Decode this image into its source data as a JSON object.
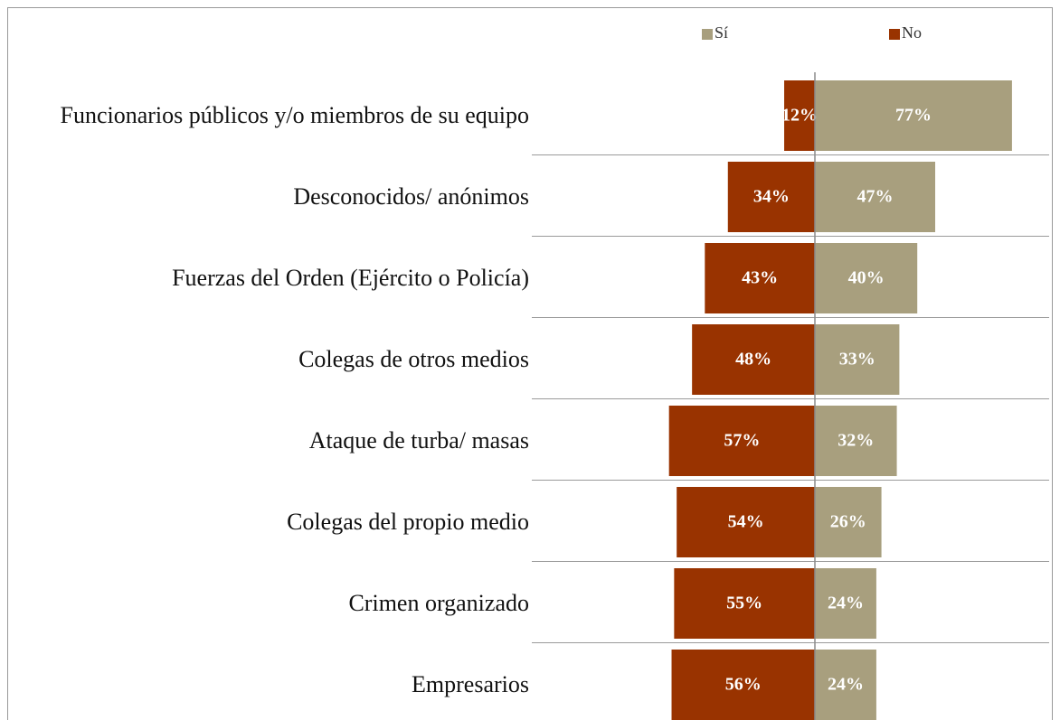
{
  "chart_data": {
    "type": "diverging-bar",
    "categories": [
      "Funcionarios públicos y/o miembros de su equipo",
      "Desconocidos/ anónimos",
      "Fuerzas del Orden (Ejército o Policía)",
      "Colegas de otros medios",
      "Ataque de turba/ masas",
      "Colegas del propio medio",
      "Crimen organizado",
      "Empresarios"
    ],
    "series": [
      {
        "name": "Sí",
        "color": "#a89f7e",
        "values": [
          77,
          47,
          40,
          33,
          32,
          26,
          24,
          24
        ],
        "value_labels": [
          "77%",
          "47%",
          "40%",
          "33%",
          "32%",
          "26%",
          "24%",
          "24%"
        ]
      },
      {
        "name": "No",
        "color": "#993300",
        "values": [
          12,
          34,
          43,
          48,
          57,
          54,
          55,
          56
        ],
        "value_labels": [
          "12%",
          "34%",
          "43%",
          "48%",
          "57%",
          "54%",
          "55%",
          "56%"
        ]
      }
    ]
  }
}
